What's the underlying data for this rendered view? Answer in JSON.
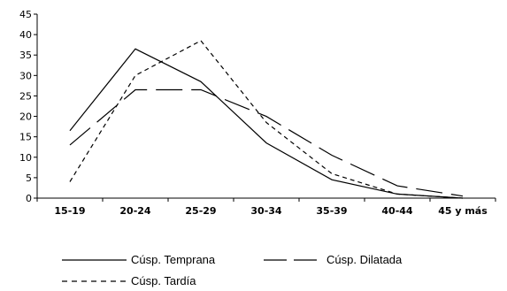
{
  "chart_data": {
    "type": "line",
    "title": "",
    "xlabel": "",
    "ylabel": "",
    "categories": [
      "15-19",
      "20-24",
      "25-29",
      "30-34",
      "35-39",
      "40-44",
      "45 y más"
    ],
    "ylim": [
      0,
      45
    ],
    "yticks": [
      0,
      5,
      10,
      15,
      20,
      25,
      30,
      35,
      40,
      45
    ],
    "grid": false,
    "legend_position": "bottom",
    "series": [
      {
        "name": "Cúsp. Temprana",
        "style": "solid",
        "color": "#000000",
        "values": [
          16.5,
          36.5,
          28.5,
          13.5,
          4.5,
          1,
          0
        ]
      },
      {
        "name": "Cúsp. Dilatada",
        "style": "longdash",
        "color": "#000000",
        "values": [
          13,
          26.5,
          26.5,
          20,
          10.5,
          3,
          0.5
        ]
      },
      {
        "name": "Cúsp. Tardía",
        "style": "shortdash",
        "color": "#000000",
        "values": [
          4,
          30,
          38.5,
          18.5,
          6,
          1,
          0
        ]
      }
    ]
  }
}
